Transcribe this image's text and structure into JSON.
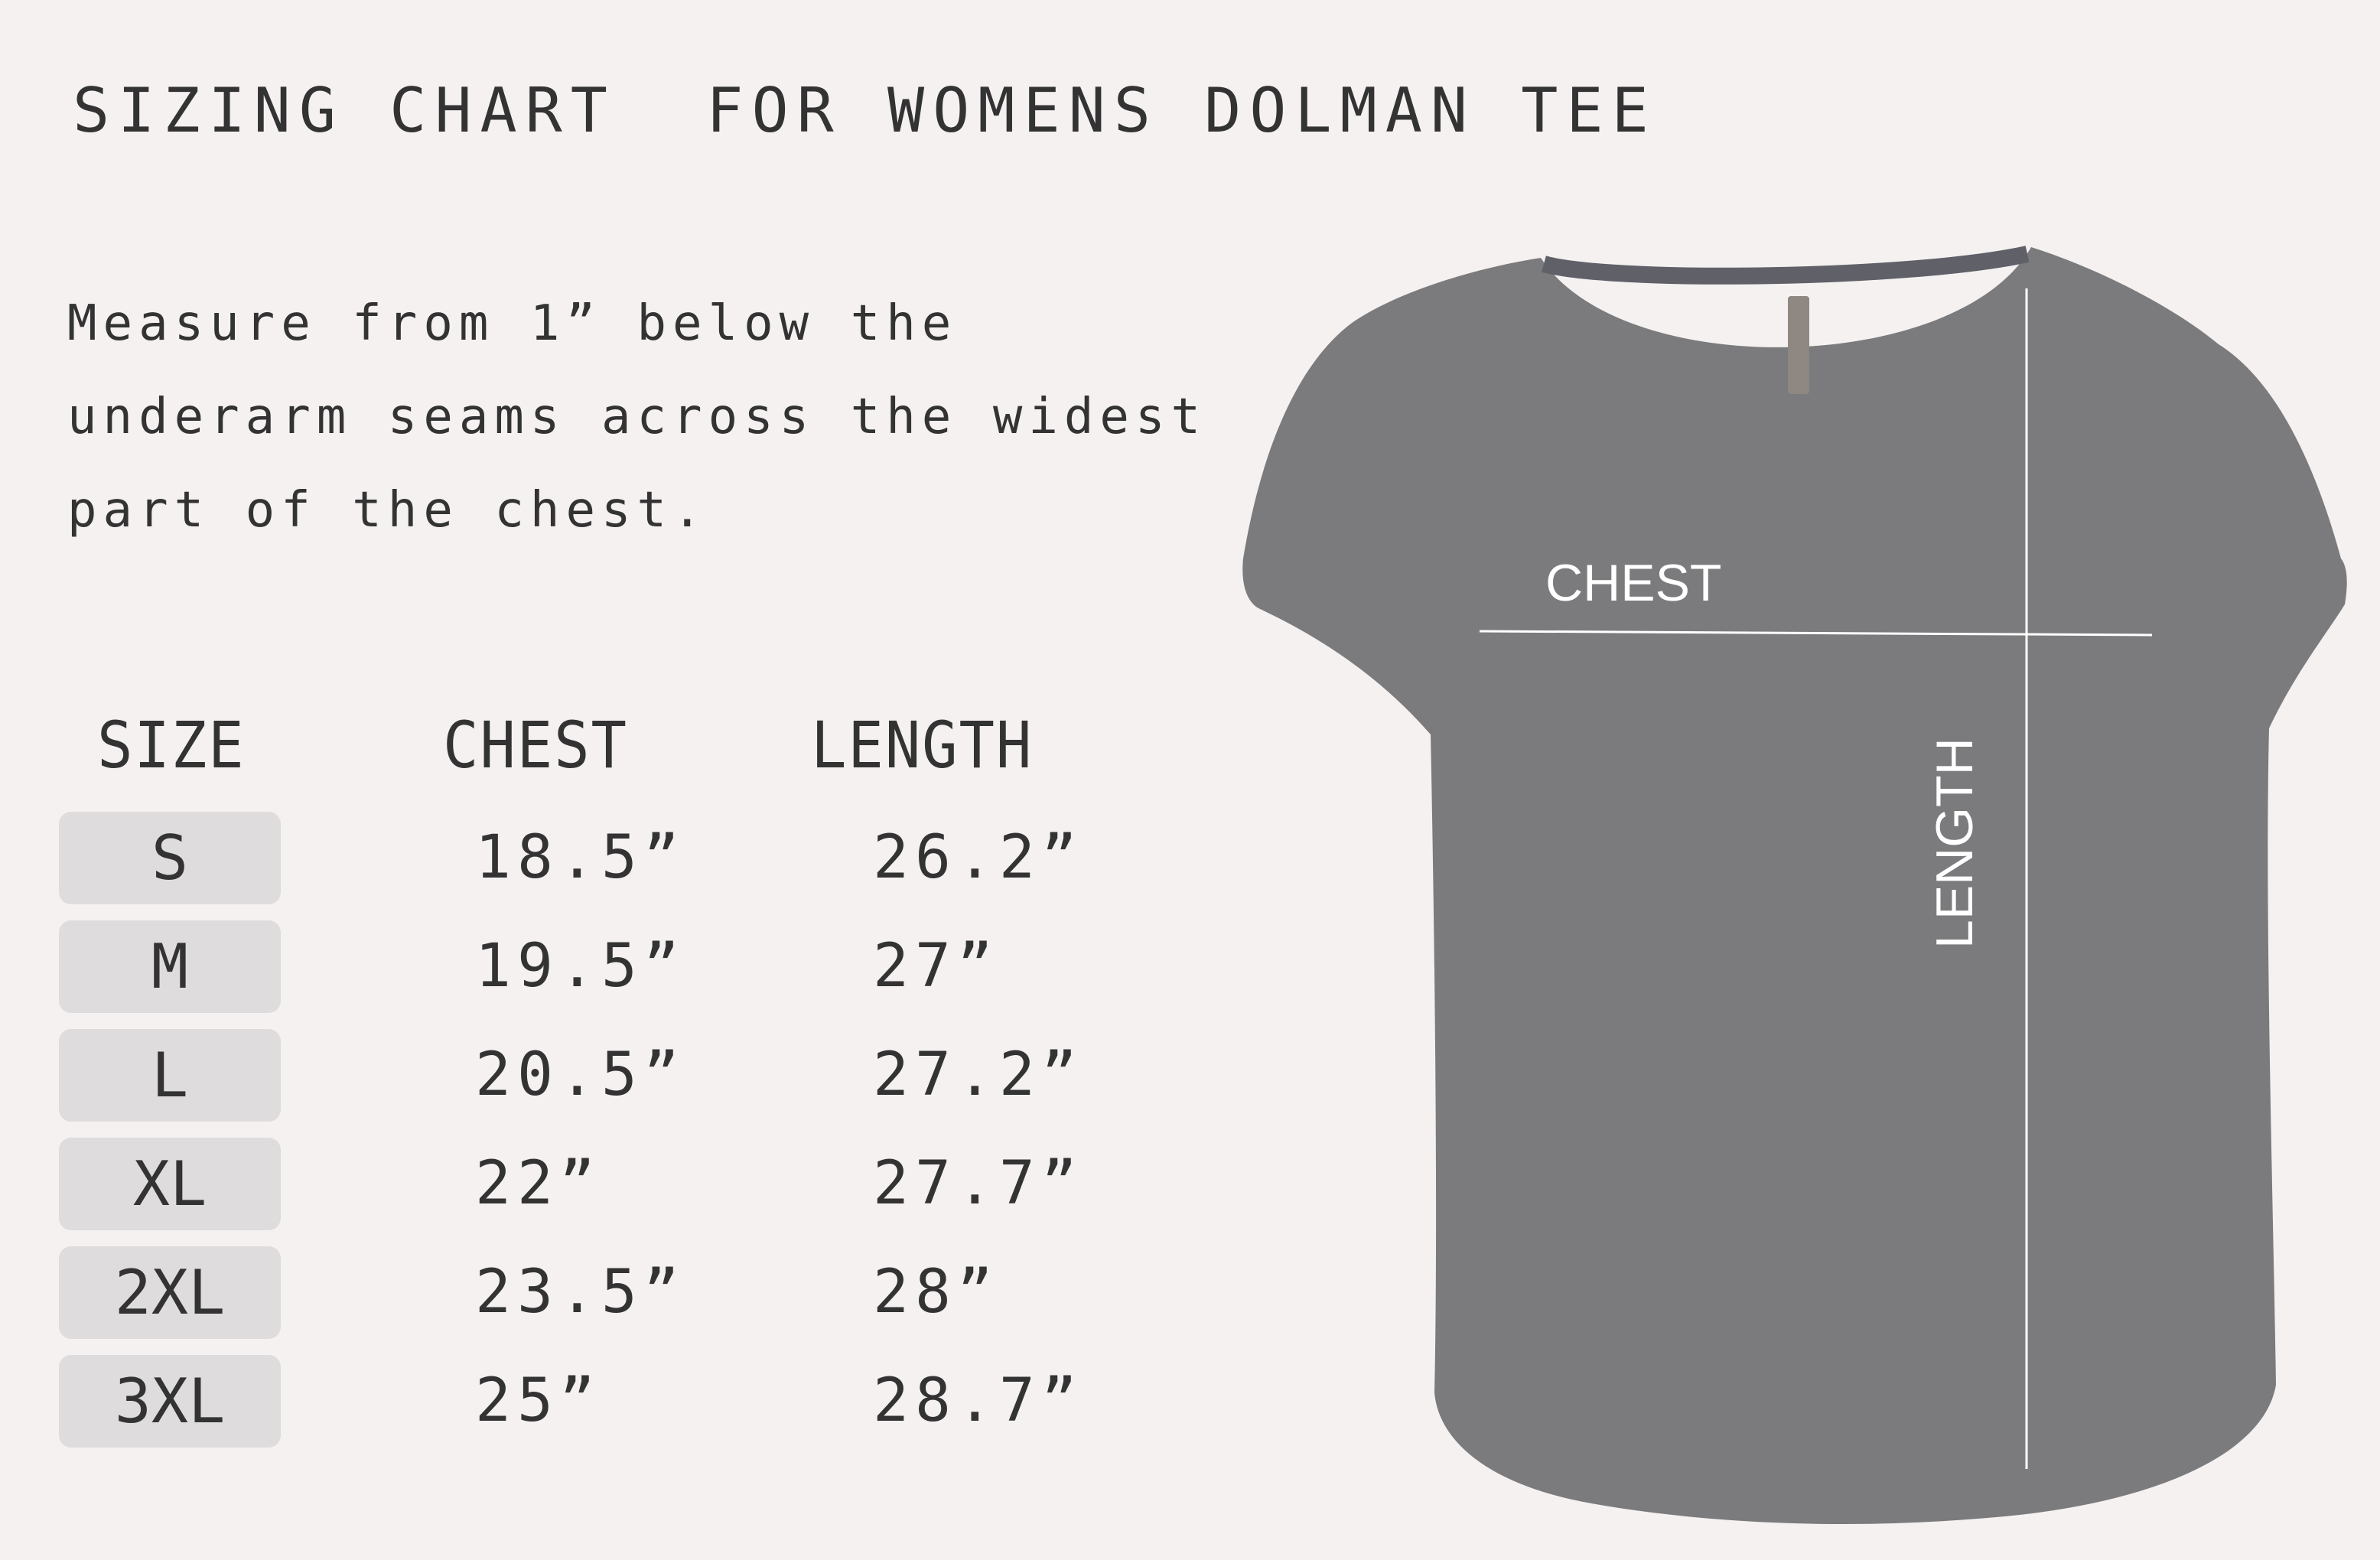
{
  "title": "SIZING CHART  FOR WOMENS DOLMAN TEE",
  "instructions": [
    "Measure from 1” below the",
    "underarm seams across the widest",
    "part of the chest."
  ],
  "table": {
    "headers": [
      "SIZE",
      "CHEST",
      "LENGTH"
    ],
    "rows": [
      {
        "size": "S",
        "chest": "18.5”",
        "length": "26.2”"
      },
      {
        "size": "M",
        "chest": "19.5”",
        "length": "27”"
      },
      {
        "size": "L",
        "chest": "20.5”",
        "length": "27.2”"
      },
      {
        "size": "XL",
        "chest": "22”",
        "length": "27.7”"
      },
      {
        "size": "2XL",
        "chest": "23.5”",
        "length": "28”"
      },
      {
        "size": "3XL",
        "chest": "25”",
        "length": "28.7”"
      }
    ]
  },
  "diagram": {
    "chest_label": "CHEST",
    "length_label": "LENGTH"
  },
  "colors": {
    "background": "#f4f1f0",
    "text": "#333333",
    "size_box": "#dedcdc",
    "shirt": "#7b7b7d",
    "measure_line": "#ffffff"
  }
}
